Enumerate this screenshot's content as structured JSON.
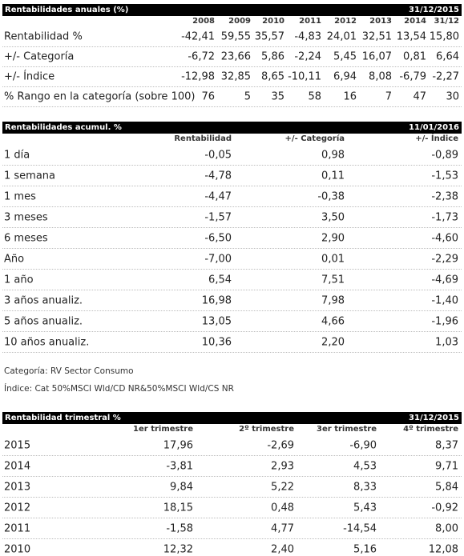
{
  "annual": {
    "title": "Rentabilidades anuales (%)",
    "date": "31/12/2015",
    "years": [
      "2008",
      "2009",
      "2010",
      "2011",
      "2012",
      "2013",
      "2014",
      "31/12"
    ],
    "rows": [
      {
        "label": "Rentabilidad %",
        "values": [
          "-42,41",
          "59,55",
          "35,57",
          "-4,83",
          "24,01",
          "32,51",
          "13,54",
          "15,80"
        ]
      },
      {
        "label": "+/- Categoría",
        "values": [
          "-6,72",
          "23,66",
          "5,86",
          "-2,24",
          "5,45",
          "16,07",
          "0,81",
          "6,64"
        ]
      },
      {
        "label": "+/- Índice",
        "values": [
          "-12,98",
          "32,85",
          "8,65",
          "-10,11",
          "6,94",
          "8,08",
          "-6,79",
          "-2,27"
        ]
      },
      {
        "label": "% Rango en la categoría (sobre 100)",
        "values": [
          "76",
          "5",
          "35",
          "58",
          "16",
          "7",
          "47",
          "30"
        ]
      }
    ]
  },
  "cumulative": {
    "title": "Rentabilidades acumul. %",
    "date": "11/01/2016",
    "columns": [
      "Rentabilidad",
      "+/- Categoría",
      "+/- Índice"
    ],
    "rows": [
      {
        "label": "1 día",
        "values": [
          "-0,05",
          "0,98",
          "-0,89"
        ]
      },
      {
        "label": "1 semana",
        "values": [
          "-4,78",
          "0,11",
          "-1,53"
        ]
      },
      {
        "label": "1 mes",
        "values": [
          "-4,47",
          "-0,38",
          "-2,38"
        ]
      },
      {
        "label": "3 meses",
        "values": [
          "-1,57",
          "3,50",
          "-1,73"
        ]
      },
      {
        "label": "6 meses",
        "values": [
          "-6,50",
          "2,90",
          "-4,60"
        ]
      },
      {
        "label": "Año",
        "values": [
          "-7,00",
          "0,01",
          "-2,29"
        ]
      },
      {
        "label": "1 año",
        "values": [
          "6,54",
          "7,51",
          "-4,69"
        ]
      },
      {
        "label": "3 años anualiz.",
        "values": [
          "16,98",
          "7,98",
          "-1,40"
        ]
      },
      {
        "label": "5 años anualiz.",
        "values": [
          "13,05",
          "4,66",
          "-1,96"
        ]
      },
      {
        "label": "10 años anualiz.",
        "values": [
          "10,36",
          "2,20",
          "1,03"
        ]
      }
    ]
  },
  "notes": {
    "category": "Categoría: RV Sector Consumo",
    "index": "Índice: Cat 50%MSCI Wld/CD NR&50%MSCI Wld/CS NR"
  },
  "quarterly": {
    "title": "Rentabilidad trimestral %",
    "date": "31/12/2015",
    "columns": [
      "1er trimestre",
      "2º trimestre",
      "3er trimestre",
      "4º trimestre"
    ],
    "rows": [
      {
        "label": "2015",
        "values": [
          "17,96",
          "-2,69",
          "-6,90",
          "8,37"
        ]
      },
      {
        "label": "2014",
        "values": [
          "-3,81",
          "2,93",
          "4,53",
          "9,71"
        ]
      },
      {
        "label": "2013",
        "values": [
          "9,84",
          "5,22",
          "8,33",
          "5,84"
        ]
      },
      {
        "label": "2012",
        "values": [
          "18,15",
          "0,48",
          "5,43",
          "-0,92"
        ]
      },
      {
        "label": "2011",
        "values": [
          "-1,58",
          "4,77",
          "-14,54",
          "8,00"
        ]
      },
      {
        "label": "2010",
        "values": [
          "12,32",
          "2,40",
          "5,16",
          "12,08"
        ]
      }
    ]
  }
}
